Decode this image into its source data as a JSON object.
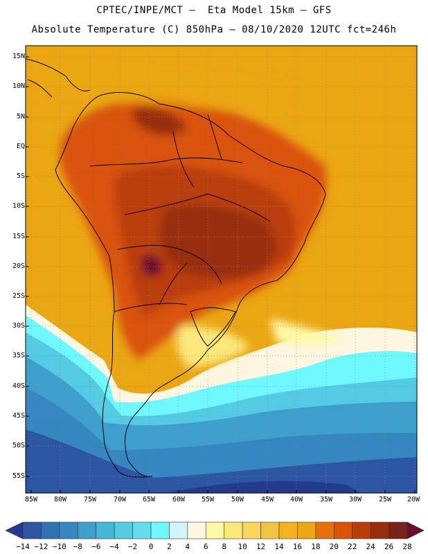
{
  "header": {
    "line1": "CPTEC/INPE/MCT –  Eta Model 15km – GFS",
    "line2": "Absolute Temperature (C) 850hPa – 08/10/2020 12UTC fct=246h"
  },
  "map": {
    "lat_labels": [
      "15N",
      "10N",
      "5N",
      "EQ",
      "5S",
      "10S",
      "15S",
      "20S",
      "25S",
      "30S",
      "35S",
      "40S",
      "45S",
      "50S",
      "55S"
    ],
    "lon_labels": [
      "85W",
      "80W",
      "75W",
      "70W",
      "65W",
      "60W",
      "55W",
      "50W",
      "45W",
      "40W",
      "35W",
      "30W",
      "25W",
      "20W"
    ],
    "lon_range": [
      -85,
      -20
    ],
    "lat_range": [
      15,
      -55
    ],
    "grid": "dotted"
  },
  "colorbar": {
    "labels": [
      "-14",
      "-12",
      "-10",
      "-8",
      "-6",
      "-4",
      "-2",
      "0",
      "2",
      "4",
      "6",
      "8",
      "10",
      "12",
      "14",
      "16",
      "18",
      "20",
      "22",
      "24",
      "26",
      "28"
    ],
    "colors": [
      "#243a8e",
      "#2c55a2",
      "#3071b2",
      "#3686c0",
      "#3e9fcc",
      "#46b7d8",
      "#54cbe2",
      "#66dcec",
      "#6ff8ff",
      "#d3f4fb",
      "#fff7e2",
      "#fff8a6",
      "#fce77a",
      "#fad55c",
      "#f3c443",
      "#f0b21f",
      "#eba614",
      "#e6700b",
      "#d95308",
      "#b93d09",
      "#972e10",
      "#782317",
      "#6a0d2e"
    ]
  }
}
